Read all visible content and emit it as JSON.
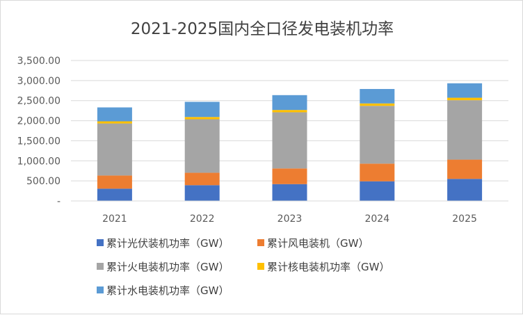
{
  "chart_data": {
    "type": "stacked-bar",
    "title": "2021-2025国内全口径发电装机功率",
    "categories": [
      "2021",
      "2022",
      "2023",
      "2024",
      "2025"
    ],
    "ylim": [
      0,
      3500
    ],
    "ytick_labels": [
      "-",
      "500.00",
      "1,000.00",
      "1,500.00",
      "2,000.00",
      "2,500.00",
      "3,000.00",
      "3,500.00"
    ],
    "gridlines": true,
    "legend_position": "bottom",
    "series": [
      {
        "name": "累计光伏装机功率（GW）",
        "color": "#4472C4",
        "values": [
          306,
          393,
          420,
          490,
          550
        ]
      },
      {
        "name": "累计风电装机（GW）",
        "color": "#ED7D31",
        "values": [
          328,
          310,
          390,
          440,
          480
        ]
      },
      {
        "name": "累计火电装机功率（GW）",
        "color": "#A5A5A5",
        "values": [
          1297,
          1333,
          1400,
          1440,
          1480
        ]
      },
      {
        "name": "累计核电装机功率（GW）",
        "color": "#FFC000",
        "values": [
          53,
          56,
          57,
          60,
          62
        ]
      },
      {
        "name": "累计水电装机功率（GW）",
        "color": "#5B9BD5",
        "values": [
          347,
          378,
          370,
          360,
          360
        ]
      }
    ]
  }
}
